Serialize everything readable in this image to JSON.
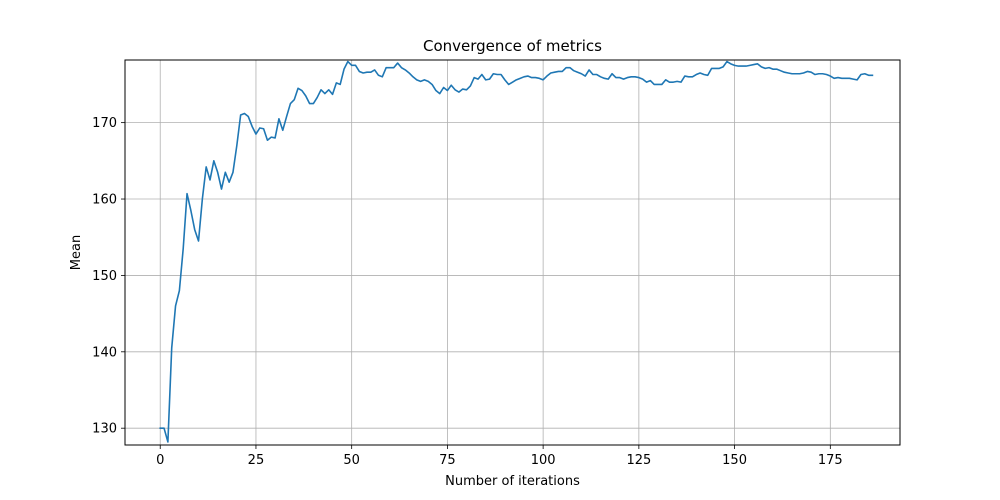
{
  "chart_data": {
    "type": "line",
    "title": "Convergence of metrics",
    "xlabel": "Number of iterations",
    "ylabel": "Mean",
    "xlim": [
      -9.2,
      193.2
    ],
    "ylim": [
      127.8,
      178.2
    ],
    "xticks": [
      0,
      25,
      50,
      75,
      100,
      125,
      150,
      175
    ],
    "yticks": [
      130,
      140,
      150,
      160,
      170
    ],
    "grid": true,
    "series_color": "#1f77b4",
    "series": [
      {
        "values": [
          130.0,
          130.0,
          128.2,
          140.5,
          146.0,
          148.0,
          153.5,
          160.7,
          158.5,
          156.0,
          154.5,
          160.0,
          164.2,
          162.5,
          165.0,
          163.5,
          161.3,
          163.5,
          162.2,
          163.5,
          167.0,
          171.0,
          171.2,
          170.8,
          169.5,
          168.5,
          169.3,
          169.2,
          167.7,
          168.1,
          168.0,
          170.5,
          169.0,
          170.8,
          172.5,
          173.0,
          174.5,
          174.2,
          173.5,
          172.5,
          172.5,
          173.3,
          174.3,
          173.8,
          174.3,
          173.7,
          175.2,
          175.0,
          177.0,
          178.0,
          177.5,
          177.5,
          176.7,
          176.5,
          176.6,
          176.6,
          176.9,
          176.2,
          176.0,
          177.2,
          177.2,
          177.2,
          177.8,
          177.2,
          176.9,
          176.5,
          176.0,
          175.6,
          175.4,
          175.6,
          175.4,
          175.0,
          174.2,
          173.8,
          174.6,
          174.2,
          174.9,
          174.3,
          174.0,
          174.4,
          174.3,
          174.8,
          175.9,
          175.7,
          176.3,
          175.6,
          175.7,
          176.4,
          176.3,
          176.3,
          175.6,
          175.0,
          175.3,
          175.6,
          175.8,
          176.0,
          176.1,
          175.9,
          175.9,
          175.8,
          175.6,
          176.1,
          176.5,
          176.6,
          176.7,
          176.7,
          177.2,
          177.2,
          176.8,
          176.6,
          176.4,
          176.1,
          176.9,
          176.3,
          176.3,
          176.0,
          175.8,
          175.7,
          176.4,
          175.9,
          175.9,
          175.7,
          175.9,
          176.0,
          176.0,
          175.9,
          175.7,
          175.3,
          175.5,
          175.0,
          175.0,
          175.0,
          175.6,
          175.3,
          175.3,
          175.4,
          175.3,
          176.1,
          176.0,
          176.0,
          176.3,
          176.5,
          176.3,
          176.2,
          177.1,
          177.1,
          177.1,
          177.3,
          178.0,
          177.7,
          177.5,
          177.4,
          177.4,
          177.4,
          177.5,
          177.6,
          177.7,
          177.3,
          177.1,
          177.2,
          177.0,
          177.0,
          176.8,
          176.6,
          176.5,
          176.4,
          176.4,
          176.4,
          176.5,
          176.7,
          176.6,
          176.3,
          176.4,
          176.4,
          176.3,
          176.1,
          175.8,
          175.9,
          175.8,
          175.8,
          175.8,
          175.7,
          175.6,
          176.3,
          176.4,
          176.2,
          176.2
        ]
      }
    ]
  }
}
